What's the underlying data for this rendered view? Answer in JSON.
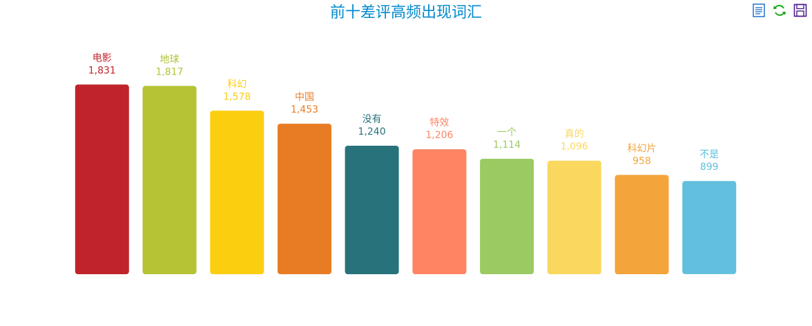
{
  "chart_data": {
    "type": "bar",
    "title": "前十差评高频出现词汇",
    "categories": [
      "电影",
      "地球",
      "科幻",
      "中国",
      "没有",
      "特效",
      "一个",
      "真的",
      "科幻片",
      "不是"
    ],
    "values": [
      1831,
      1817,
      1578,
      1453,
      1240,
      1206,
      1114,
      1096,
      958,
      899
    ],
    "value_labels": [
      "1,831",
      "1,817",
      "1,578",
      "1,453",
      "1,240",
      "1,206",
      "1,114",
      "1,096",
      "958",
      "899"
    ],
    "colors": [
      "#c1232b",
      "#b5c334",
      "#fcce10",
      "#e87c25",
      "#27727b",
      "#fe8463",
      "#9bca63",
      "#fad860",
      "#f3a43b",
      "#60c0dd"
    ],
    "ylim": [
      0,
      2000
    ],
    "grid": false,
    "xlabel": "",
    "ylabel": "",
    "title_color": "#008acd"
  },
  "toolbox": {
    "items": [
      {
        "name": "data-view-icon",
        "color": "#2b7bd1"
      },
      {
        "name": "restore-icon",
        "color": "#1aa81a"
      },
      {
        "name": "save-image-icon",
        "color": "#4b1c8e"
      }
    ]
  }
}
